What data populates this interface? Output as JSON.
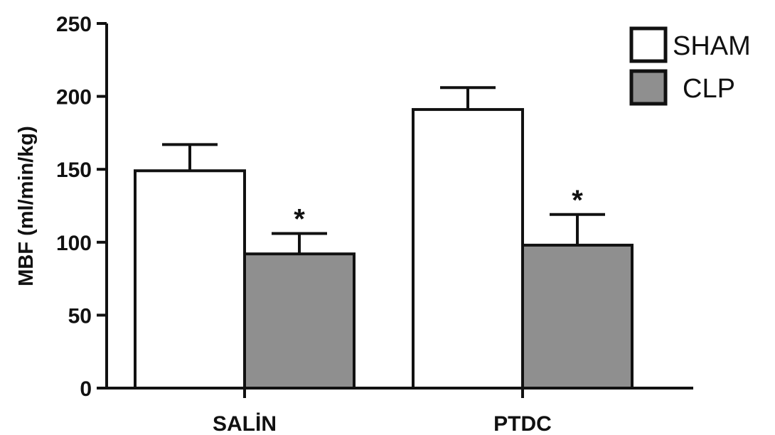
{
  "chart_data": {
    "type": "bar",
    "title": "",
    "xlabel": "",
    "ylabel": "MBF (ml/min/kg)",
    "ylim": [
      0,
      250
    ],
    "yticks": [
      0,
      50,
      100,
      150,
      200,
      250
    ],
    "categories": [
      "SALİN",
      "PTDC"
    ],
    "series": [
      {
        "name": "SHAM",
        "color": "#ffffff",
        "values": [
          149,
          191
        ],
        "errors": [
          18,
          15
        ],
        "annotations": [
          "",
          ""
        ]
      },
      {
        "name": "CLP",
        "color": "#8f8f8f",
        "values": [
          92,
          98
        ],
        "errors": [
          14,
          21
        ],
        "annotations": [
          "*",
          "*"
        ]
      }
    ],
    "grid": false,
    "legend": "top-right"
  }
}
